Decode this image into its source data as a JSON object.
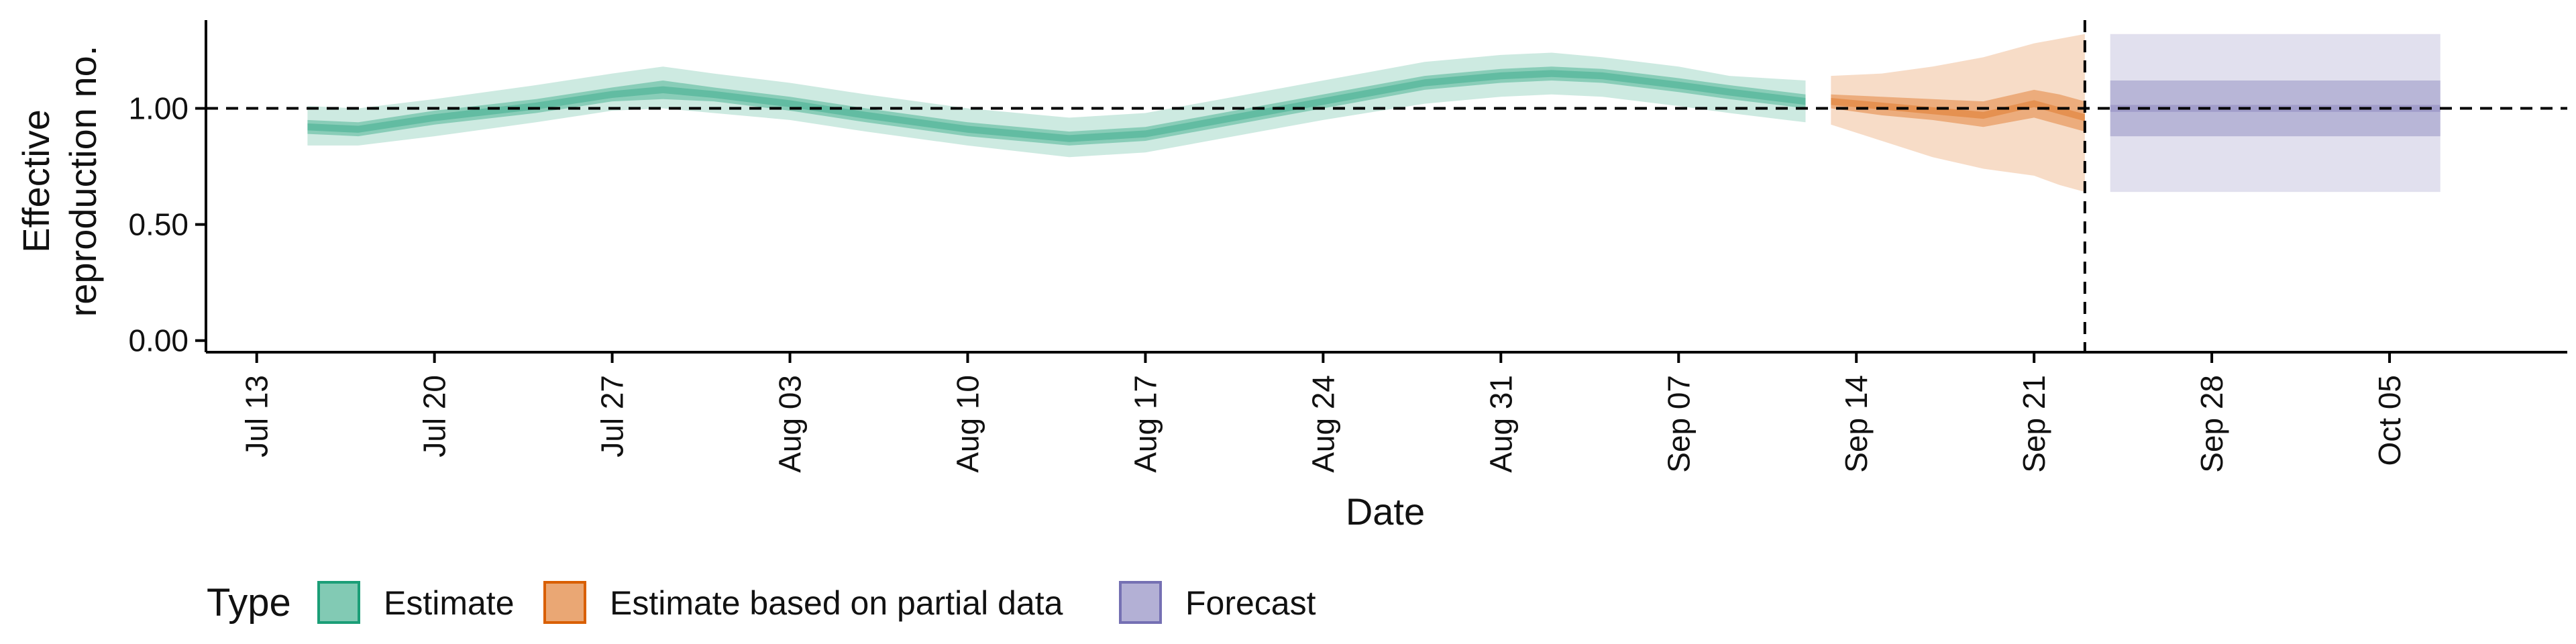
{
  "chart_data": {
    "type": "area",
    "xlabel": "Date",
    "ylabel_lines": [
      "Effective",
      "reproduction no."
    ],
    "x_ticks": [
      "Jul 13",
      "Jul 20",
      "Jul 27",
      "Aug 03",
      "Aug 10",
      "Aug 17",
      "Aug 24",
      "Aug 31",
      "Sep 07",
      "Sep 14",
      "Sep 21",
      "Sep 28",
      "Oct 05"
    ],
    "x_range": [
      "2020-07-11",
      "2020-10-12"
    ],
    "y_ticks": [
      "0.00",
      "0.50",
      "1.00"
    ],
    "ylim": [
      -0.05,
      1.38
    ],
    "reference_lines": {
      "horizontal_y": 1.0,
      "vertical_x": "2020-09-23"
    },
    "grid": false,
    "legend": {
      "position": "bottom",
      "title": "Type",
      "entries": [
        {
          "label": "Estimate",
          "color": "#1b9e77"
        },
        {
          "label": "Estimate based on partial data",
          "color": "#d95f02"
        },
        {
          "label": "Forecast",
          "color": "#7570b3"
        }
      ]
    },
    "series": [
      {
        "name": "Estimate",
        "color": "#1b9e77",
        "x": [
          "2020-07-15",
          "2020-07-17",
          "2020-07-20",
          "2020-07-24",
          "2020-07-27",
          "2020-07-29",
          "2020-07-31",
          "2020-08-03",
          "2020-08-06",
          "2020-08-10",
          "2020-08-14",
          "2020-08-17",
          "2020-08-20",
          "2020-08-24",
          "2020-08-28",
          "2020-08-31",
          "2020-09-02",
          "2020-09-04",
          "2020-09-07",
          "2020-09-09",
          "2020-09-12"
        ],
        "median": [
          0.92,
          0.91,
          0.96,
          1.01,
          1.06,
          1.08,
          1.06,
          1.02,
          0.97,
          0.91,
          0.87,
          0.89,
          0.95,
          1.03,
          1.11,
          1.14,
          1.15,
          1.14,
          1.1,
          1.07,
          1.03
        ],
        "inner_lower": [
          0.89,
          0.88,
          0.93,
          0.98,
          1.03,
          1.04,
          1.03,
          0.99,
          0.94,
          0.88,
          0.84,
          0.86,
          0.92,
          1.0,
          1.08,
          1.11,
          1.12,
          1.11,
          1.07,
          1.04,
          1.0
        ],
        "inner_upper": [
          0.95,
          0.94,
          0.99,
          1.04,
          1.09,
          1.12,
          1.09,
          1.05,
          1.0,
          0.94,
          0.9,
          0.92,
          0.98,
          1.06,
          1.14,
          1.17,
          1.18,
          1.17,
          1.13,
          1.1,
          1.06
        ],
        "outer_lower": [
          0.84,
          0.84,
          0.88,
          0.94,
          0.99,
          1.0,
          0.98,
          0.95,
          0.9,
          0.84,
          0.79,
          0.81,
          0.87,
          0.95,
          1.02,
          1.05,
          1.06,
          1.05,
          1.01,
          0.98,
          0.94
        ],
        "outer_upper": [
          1.01,
          1.0,
          1.04,
          1.1,
          1.15,
          1.18,
          1.15,
          1.11,
          1.06,
          1.0,
          0.96,
          0.98,
          1.04,
          1.12,
          1.2,
          1.23,
          1.24,
          1.22,
          1.18,
          1.14,
          1.12
        ]
      },
      {
        "name": "Estimate based on partial data",
        "color": "#d95f02",
        "x": [
          "2020-09-13",
          "2020-09-15",
          "2020-09-17",
          "2020-09-19",
          "2020-09-21",
          "2020-09-22",
          "2020-09-23"
        ],
        "median": [
          1.03,
          1.01,
          0.99,
          0.97,
          1.02,
          0.99,
          0.96
        ],
        "inner_lower": [
          1.0,
          0.97,
          0.95,
          0.92,
          0.96,
          0.93,
          0.9
        ],
        "inner_upper": [
          1.06,
          1.05,
          1.04,
          1.03,
          1.08,
          1.06,
          1.03
        ],
        "outer_lower": [
          0.93,
          0.86,
          0.79,
          0.74,
          0.71,
          0.67,
          0.64
        ],
        "outer_upper": [
          1.14,
          1.15,
          1.18,
          1.22,
          1.28,
          1.3,
          1.32
        ]
      },
      {
        "name": "Forecast",
        "color": "#7570b3",
        "x": [
          "2020-09-24",
          "2020-10-07"
        ],
        "median": [
          1.0,
          1.0
        ],
        "inner_lower": [
          0.88,
          0.88
        ],
        "inner_upper": [
          1.12,
          1.12
        ],
        "outer_lower": [
          0.64,
          0.64
        ],
        "outer_upper": [
          1.32,
          1.32
        ]
      }
    ]
  }
}
